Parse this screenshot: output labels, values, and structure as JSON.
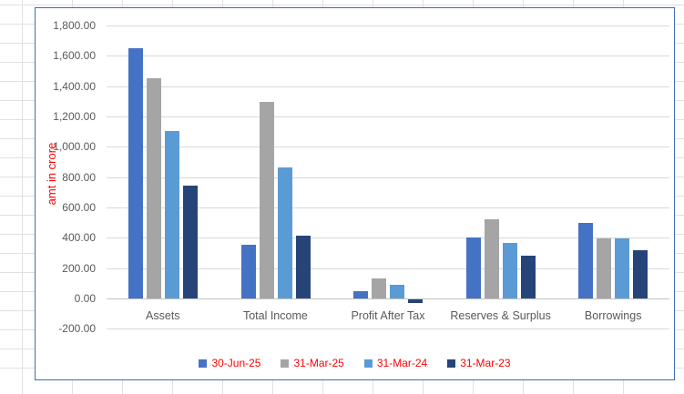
{
  "chart_data": {
    "type": "bar",
    "title": "",
    "ylabel": "amt in crore",
    "ylabel_color": "#ff0000",
    "categories": [
      "Assets",
      "Total Income",
      "Profit After Tax",
      "Reserves & Surplus",
      "Borrowings"
    ],
    "series": [
      {
        "name": "30-Jun-25",
        "color": "#4472c4",
        "values": [
          1650,
          355,
          45,
          400,
          495
        ]
      },
      {
        "name": "31-Mar-25",
        "color": "#a5a5a5",
        "values": [
          1450,
          1295,
          130,
          520,
          395
        ]
      },
      {
        "name": "31-Mar-24",
        "color": "#5b9bd5",
        "values": [
          1105,
          865,
          90,
          365,
          395
        ]
      },
      {
        "name": "31-Mar-23",
        "color": "#264478",
        "values": [
          745,
          415,
          -25,
          280,
          315
        ]
      }
    ],
    "ylim": [
      -200,
      1800
    ],
    "ytick_step": 200,
    "ytick_labels": [
      "1,800.00",
      "1,600.00",
      "1,400.00",
      "1,200.00",
      "1,000.00",
      "800.00",
      "600.00",
      "400.00",
      "200.00",
      "0.00",
      "-200.00"
    ],
    "grid": true,
    "legend_position": "bottom",
    "legend_text_color": "#ff0000",
    "axis_text_color": "#595959",
    "chart_border_color": "#3f6cb4"
  }
}
